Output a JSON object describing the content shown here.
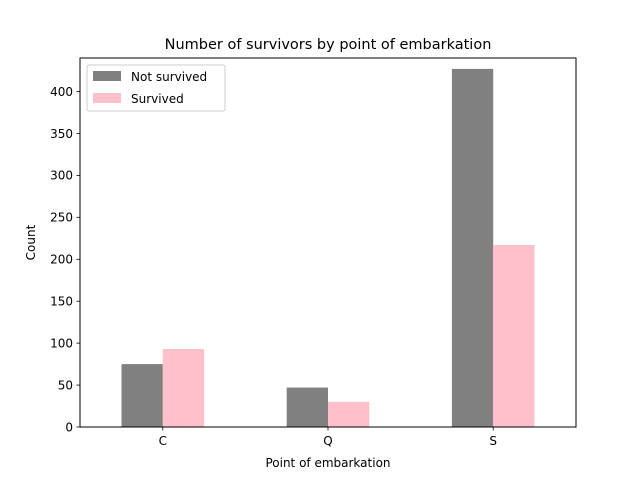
{
  "chart_data": {
    "type": "bar",
    "title": "Number of survivors by point of embarkation",
    "xlabel": "Point of embarkation",
    "ylabel": "Count",
    "categories": [
      "C",
      "Q",
      "S"
    ],
    "series": [
      {
        "name": "Not survived",
        "values": [
          75,
          47,
          427
        ],
        "color": "#808080"
      },
      {
        "name": "Survived",
        "values": [
          93,
          30,
          217
        ],
        "color": "#ffc0cb"
      }
    ],
    "ylim": [
      0,
      440
    ],
    "yticks": [
      0,
      50,
      100,
      150,
      200,
      250,
      300,
      350,
      400
    ],
    "grid": false,
    "legend_position": "upper left"
  }
}
